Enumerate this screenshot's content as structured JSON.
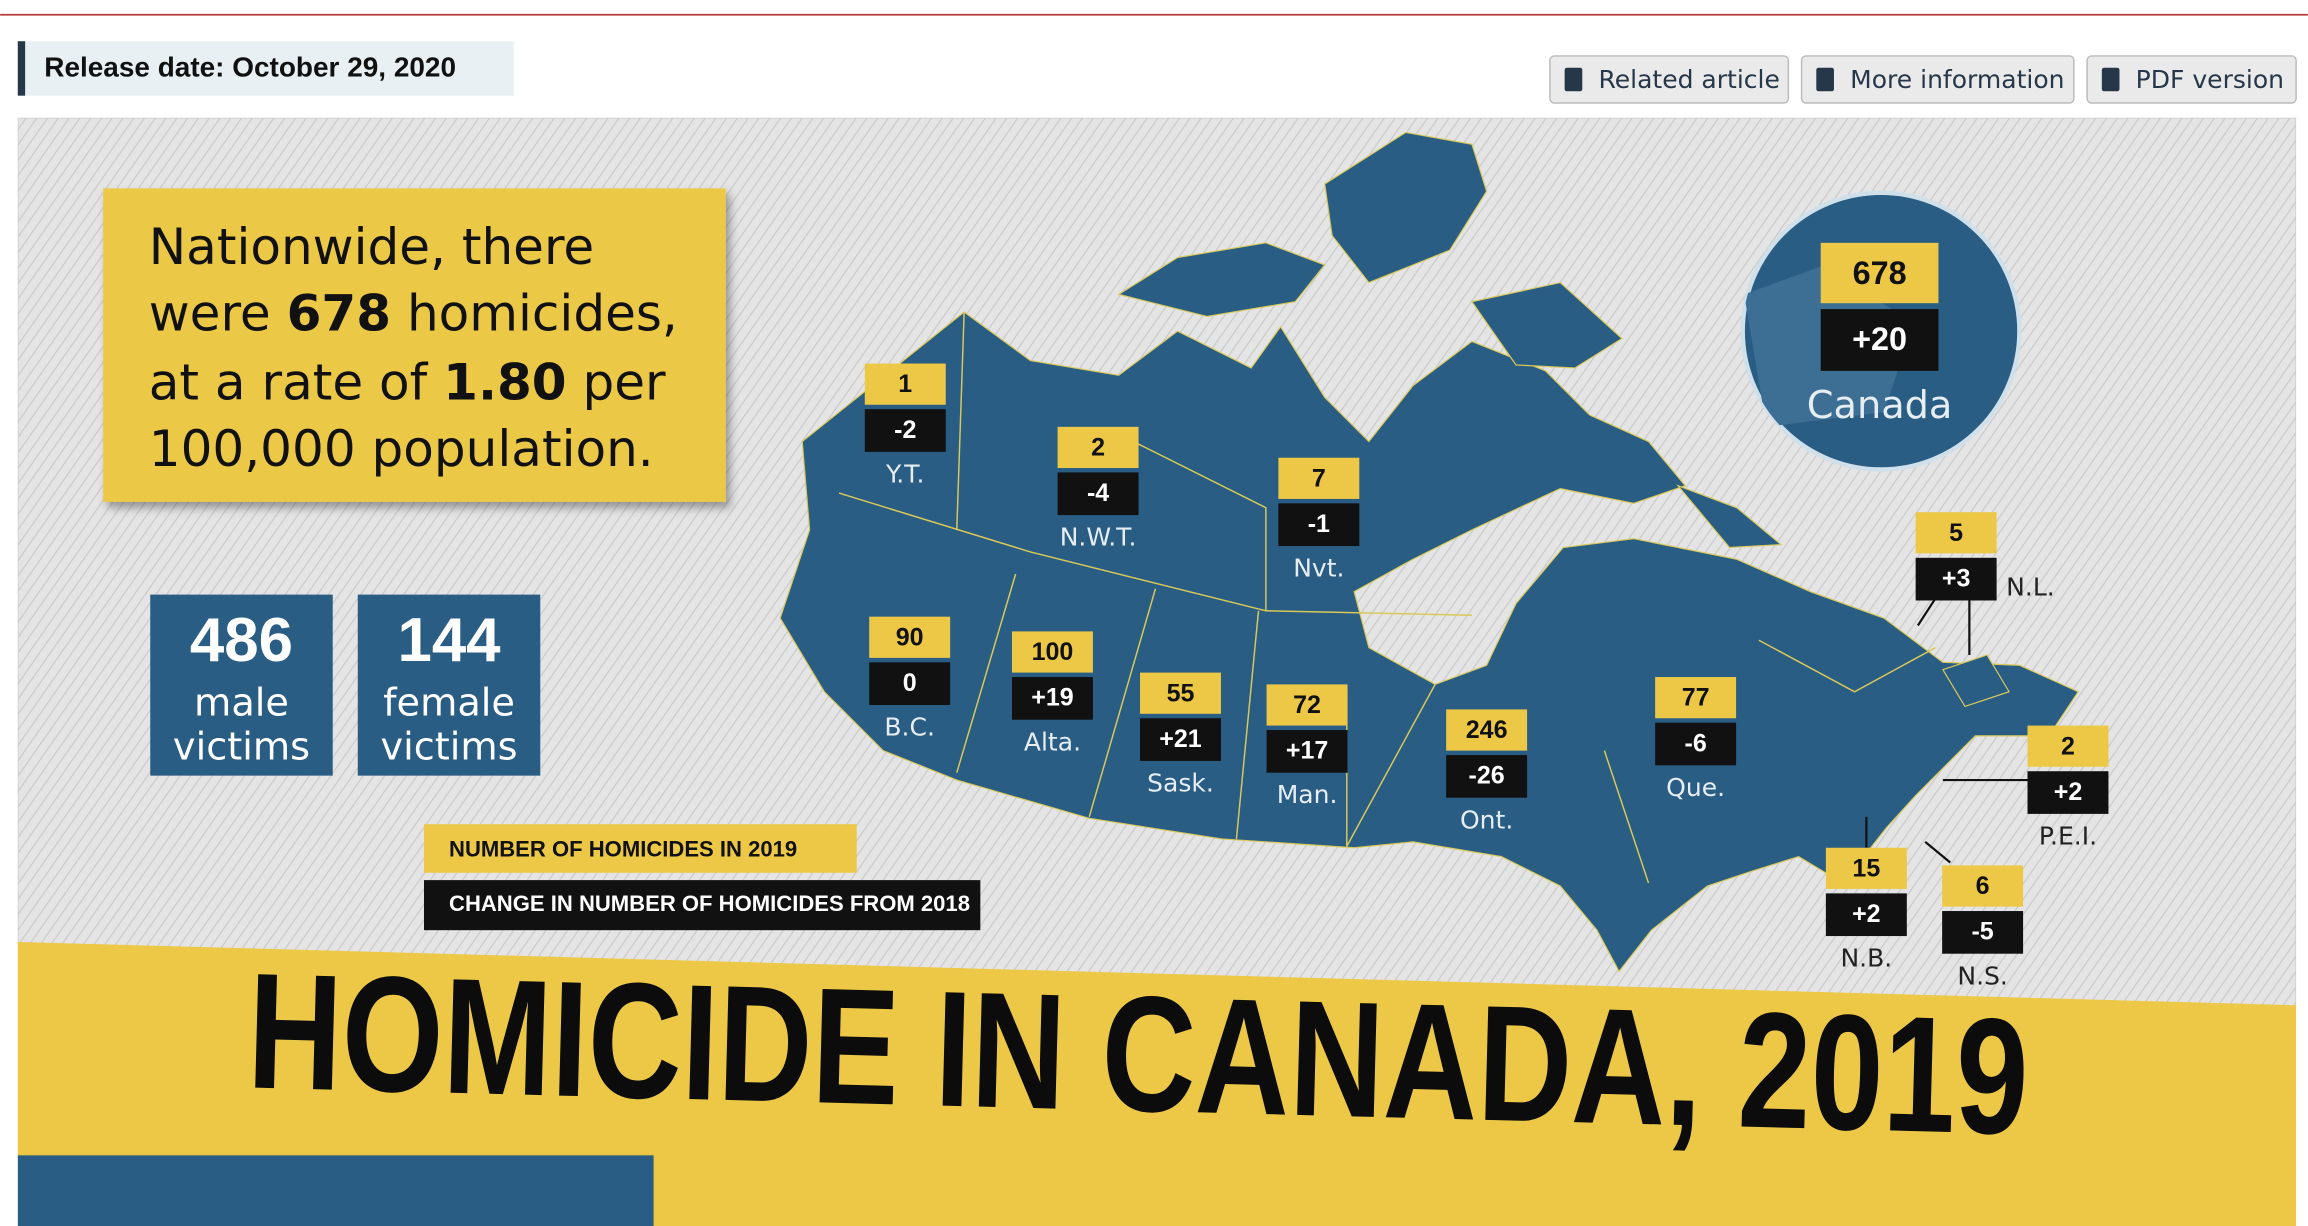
{
  "header": {
    "release_date": "Release date: October 29, 2020",
    "buttons": [
      "Related article",
      "More information",
      "PDF version"
    ]
  },
  "infographic": {
    "headline": [
      [
        "Nationwide, there"
      ],
      [
        "were ",
        "678",
        " homicides,"
      ],
      [
        "at a rate of ",
        "1.80",
        " per"
      ],
      [
        "100,000 population."
      ]
    ],
    "stats": [
      {
        "value": "486",
        "label": [
          "male",
          "victims"
        ]
      },
      {
        "value": "144",
        "label": [
          "female",
          "victims"
        ]
      }
    ],
    "canada": {
      "name": "Canada",
      "count": "678",
      "change": "+20"
    },
    "regions": [
      {
        "name": "Y.T.",
        "count": "1",
        "change": "-2"
      },
      {
        "name": "N.W.T.",
        "count": "2",
        "change": "-4"
      },
      {
        "name": "Nvt.",
        "count": "7",
        "change": "-1"
      },
      {
        "name": "B.C.",
        "count": "90",
        "change": "0"
      },
      {
        "name": "Alta.",
        "count": "100",
        "change": "+19"
      },
      {
        "name": "Sask.",
        "count": "55",
        "change": "+21"
      },
      {
        "name": "Man.",
        "count": "72",
        "change": "+17"
      },
      {
        "name": "Ont.",
        "count": "246",
        "change": "-26"
      },
      {
        "name": "Que.",
        "count": "77",
        "change": "-6"
      },
      {
        "name": "N.L.",
        "count": "5",
        "change": "+3"
      },
      {
        "name": "P.E.I.",
        "count": "2",
        "change": "+2"
      },
      {
        "name": "N.B.",
        "count": "15",
        "change": "+2"
      },
      {
        "name": "N.S.",
        "count": "6",
        "change": "-5"
      }
    ],
    "legend": {
      "count": "NUMBER OF HOMICIDES IN 2019",
      "change": "CHANGE IN NUMBER OF HOMICIDES FROM 2018"
    },
    "title": "HOMICIDE IN CANADA, 2019"
  }
}
